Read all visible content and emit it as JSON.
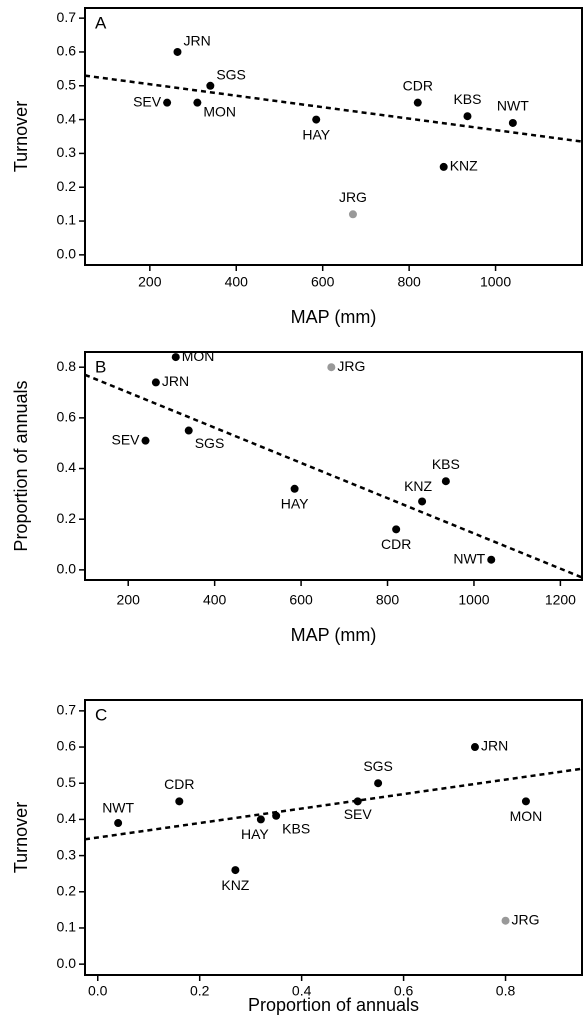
{
  "chart_data": [
    {
      "type": "scatter",
      "panel_label": "A",
      "xlabel": "MAP (mm)",
      "ylabel": "Turnover",
      "xlim": [
        50,
        1200
      ],
      "ylim": [
        -0.03,
        0.73
      ],
      "xticks": [
        200,
        400,
        600,
        800,
        1000
      ],
      "yticks": [
        {
          "value": 0,
          "label": "0.0"
        },
        0.1,
        0.2,
        0.3,
        0.4,
        0.5,
        0.6,
        0.7
      ],
      "labels": [
        "JRN",
        "SGS",
        "SEV",
        "MON",
        "HAY",
        "CDR",
        "KBS",
        "NWT",
        "KNZ",
        "JRG"
      ],
      "x": [
        264,
        340,
        240,
        310,
        585,
        820,
        935,
        1040,
        880,
        670
      ],
      "y": [
        0.6,
        0.5,
        0.45,
        0.45,
        0.4,
        0.45,
        0.41,
        0.39,
        0.26,
        0.12
      ],
      "colors": [
        "#000",
        "#000",
        "#000",
        "#000",
        "#000",
        "#000",
        "#000",
        "#000",
        "#000",
        "#999"
      ],
      "trendline": {
        "x": [
          50,
          1200
        ],
        "y": [
          0.53,
          0.335
        ]
      }
    },
    {
      "type": "scatter",
      "panel_label": "B",
      "xlabel": "MAP (mm)",
      "ylabel": "Proportion of annuals",
      "xlim": [
        100,
        1250
      ],
      "ylim": [
        -0.04,
        0.86
      ],
      "xticks": [
        200,
        400,
        600,
        800,
        1000,
        1200
      ],
      "yticks": [
        {
          "value": 0,
          "label": "0.0"
        },
        0.2,
        0.4,
        0.6,
        0.8
      ],
      "labels": [
        "JRN",
        "SGS",
        "SEV",
        "MON",
        "HAY",
        "CDR",
        "KBS",
        "NWT",
        "KNZ",
        "JRG"
      ],
      "x": [
        264,
        340,
        240,
        310,
        585,
        820,
        935,
        1040,
        880,
        670
      ],
      "y": [
        0.74,
        0.55,
        0.51,
        0.84,
        0.32,
        0.16,
        0.35,
        0.04,
        0.27,
        0.8
      ],
      "colors": [
        "#000",
        "#000",
        "#000",
        "#000",
        "#000",
        "#000",
        "#000",
        "#000",
        "#000",
        "#999"
      ],
      "trendline": {
        "x": [
          100,
          1250
        ],
        "y": [
          0.77,
          -0.03
        ]
      }
    },
    {
      "type": "scatter",
      "panel_label": "C",
      "xlabel": "Proportion of annuals",
      "ylabel": "Turnover",
      "xlim": [
        -0.025,
        0.95
      ],
      "ylim": [
        -0.03,
        0.73
      ],
      "xticks": [
        {
          "value": 0,
          "label": "0.0"
        },
        0.2,
        0.4,
        0.6,
        0.8
      ],
      "yticks": [
        {
          "value": 0,
          "label": "0.0"
        },
        0.1,
        0.2,
        0.3,
        0.4,
        0.5,
        0.6,
        0.7
      ],
      "labels": [
        "JRN",
        "SGS",
        "SEV",
        "MON",
        "HAY",
        "CDR",
        "KBS",
        "NWT",
        "KNZ",
        "JRG"
      ],
      "x": [
        0.74,
        0.55,
        0.51,
        0.84,
        0.32,
        0.16,
        0.35,
        0.04,
        0.27,
        0.8
      ],
      "y": [
        0.6,
        0.5,
        0.45,
        0.45,
        0.4,
        0.45,
        0.41,
        0.39,
        0.26,
        0.12
      ],
      "colors": [
        "#000",
        "#000",
        "#000",
        "#000",
        "#000",
        "#000",
        "#000",
        "#000",
        "#000",
        "#999"
      ],
      "trendline": {
        "x": [
          -0.025,
          0.95
        ],
        "y": [
          0.345,
          0.54
        ]
      }
    }
  ]
}
